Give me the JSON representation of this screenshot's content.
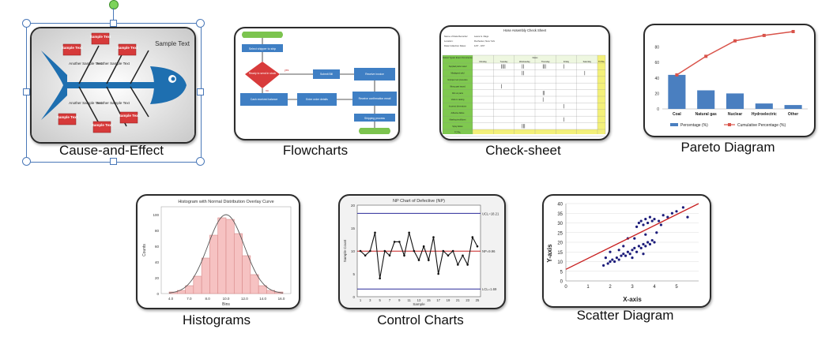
{
  "captions": {
    "cause_effect": "Cause-and-Effect",
    "flowcharts": "Flowcharts",
    "check_sheet": "Check-sheet",
    "pareto": "Pareto Diagram",
    "histograms": "Histograms",
    "control_charts": "Control Charts",
    "scatter": "Scatter Diagram"
  },
  "fishbone": {
    "head_label": "Sample Text",
    "box_label": "Sample Text",
    "branch_label": "Another Sample Text",
    "colors": {
      "fish": "#1e6fb0",
      "box": "#d63a3a"
    }
  },
  "flowchart": {
    "nodes": [
      "Select shipper to ship",
      "Ready to send in stock",
      "Submit Bill",
      "Receive invoice",
      "Cash received balance",
      "Enter order details",
      "Receive confirmation email",
      "Shipping process"
    ],
    "edge_labels": [
      "yes",
      "no"
    ]
  },
  "check_sheet": {
    "title": "Hose Assembly Check Sheet",
    "header_rows": [
      "Name of Data Recorder:",
      "Location:",
      "Data Collection Dates:"
    ],
    "header_values": [
      "Laura G. Rags",
      "Rochester, New York",
      "1/07 - 3/07"
    ],
    "first_col_header": "Defect Types/ Event Occurrence",
    "days_header": "Dates",
    "days": [
      "Monday",
      "Tuesday",
      "Wednesday",
      "Thursday",
      "Friday",
      "Saturday"
    ],
    "total_header": "TOTAL",
    "rows": [
      "Supplied parts rusted",
      "Misaligned weld",
      "Improper test procedure",
      "Wrong part issued",
      "Film on parts",
      "Voids in casting",
      "Incorrect dimensions",
      "Adhesive failure",
      "Masking insufficient",
      "Spray failure"
    ],
    "footer": "TOTAL"
  },
  "pareto": {
    "chart_data": {
      "type": "bar",
      "categories": [
        "Coal",
        "Natural gas",
        "Nuclear",
        "Hydroelectric",
        "Other"
      ],
      "series": [
        {
          "name": "Percentage (%)",
          "type": "bar",
          "values": [
            44,
            24,
            20,
            7,
            5
          ],
          "color": "#4a7fc0"
        },
        {
          "name": "Cumulative Percentage (%)",
          "type": "line",
          "values": [
            44,
            68,
            88,
            95,
            100
          ],
          "color": "#d9534a"
        }
      ],
      "yticks": [
        0,
        20,
        40,
        60,
        80
      ],
      "ylim": [
        0,
        100
      ]
    }
  },
  "histogram": {
    "chart_data": {
      "type": "bar",
      "title": "Histogram with Normal Distribution Overlay Curve",
      "xlabel": "Bins",
      "ylabel": "Counts",
      "xticks": [
        "4.0",
        "7.0",
        "8.0",
        "10.0",
        "12.0",
        "14.0",
        "16.0"
      ],
      "yticks": [
        "0",
        "20",
        "40",
        "60",
        "80",
        "100"
      ],
      "values": [
        2,
        4,
        10,
        22,
        45,
        74,
        96,
        94,
        76,
        48,
        24,
        10,
        4,
        2
      ],
      "ylim": [
        0,
        110
      ]
    }
  },
  "control": {
    "chart_data": {
      "type": "line",
      "title": "NP Chart of Defective (NP)",
      "xlabel": "Sample",
      "ylabel": "Sample Count",
      "ucl_label": "UCL=18.21",
      "center_label": "NP=9.96",
      "lcl_label": "LCL=1.69",
      "ucl": 18.21,
      "center": 9.96,
      "lcl": 1.69,
      "ylim": [
        0,
        20
      ],
      "yticks": [
        "0",
        "5",
        "10",
        "15",
        "20"
      ],
      "xticks": [
        "1",
        "3",
        "5",
        "7",
        "9",
        "11",
        "13",
        "15",
        "17",
        "19",
        "21",
        "23",
        "25"
      ],
      "values": [
        10,
        9,
        10,
        14,
        4,
        10,
        9,
        12,
        12,
        9,
        14,
        10,
        8,
        11,
        8,
        13,
        5,
        10,
        9,
        10,
        7,
        9,
        7,
        13,
        11
      ]
    }
  },
  "scatter": {
    "chart_data": {
      "type": "scatter",
      "xlabel": "X-axis",
      "ylabel": "Y-axis",
      "xticks": [
        "0",
        "1",
        "2",
        "3",
        "4",
        "5"
      ],
      "yticks": [
        "0",
        "5",
        "10",
        "15",
        "20",
        "25",
        "30",
        "35",
        "40"
      ],
      "xlim": [
        0,
        6
      ],
      "ylim": [
        0,
        40
      ],
      "trend": [
        [
          0,
          6
        ],
        [
          6,
          40
        ]
      ],
      "points": [
        [
          1.7,
          8
        ],
        [
          1.9,
          9
        ],
        [
          2.0,
          10
        ],
        [
          2.1,
          11
        ],
        [
          2.2,
          10
        ],
        [
          2.3,
          12
        ],
        [
          2.4,
          11
        ],
        [
          2.5,
          13
        ],
        [
          2.6,
          14
        ],
        [
          2.7,
          13
        ],
        [
          2.8,
          15
        ],
        [
          2.9,
          14
        ],
        [
          3.0,
          16
        ],
        [
          3.1,
          17
        ],
        [
          3.2,
          15
        ],
        [
          3.3,
          18
        ],
        [
          3.4,
          17
        ],
        [
          3.5,
          19
        ],
        [
          3.6,
          18
        ],
        [
          3.7,
          20
        ],
        [
          3.8,
          19
        ],
        [
          3.9,
          21
        ],
        [
          4.0,
          20
        ],
        [
          3.2,
          28
        ],
        [
          3.3,
          30
        ],
        [
          3.4,
          31
        ],
        [
          3.5,
          29
        ],
        [
          3.6,
          32
        ],
        [
          3.7,
          30
        ],
        [
          3.8,
          33
        ],
        [
          3.9,
          31
        ],
        [
          4.0,
          32
        ],
        [
          4.2,
          31
        ],
        [
          4.4,
          34
        ],
        [
          4.6,
          33
        ],
        [
          4.8,
          35
        ],
        [
          5.0,
          36
        ],
        [
          5.3,
          38
        ],
        [
          5.5,
          33
        ],
        [
          2.0,
          15
        ],
        [
          2.4,
          16
        ],
        [
          2.8,
          22
        ],
        [
          3.0,
          12
        ],
        [
          3.5,
          14
        ],
        [
          4.1,
          25
        ],
        [
          4.3,
          29
        ],
        [
          1.8,
          12
        ],
        [
          2.6,
          18
        ],
        [
          3.1,
          22
        ],
        [
          3.6,
          24
        ]
      ]
    }
  },
  "colors": {
    "selection": "#4a78b8",
    "rotate_handle": "#7cd35a"
  }
}
